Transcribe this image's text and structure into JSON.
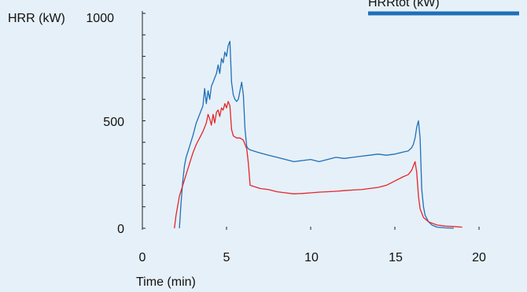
{
  "chart_data": {
    "type": "line",
    "title": "",
    "xlabel": "Time (min)",
    "ylabel": "HRR (kW)",
    "xlim": [
      0,
      20
    ],
    "ylim": [
      0,
      1000
    ],
    "x_ticks": [
      "0",
      "5",
      "10",
      "15",
      "20"
    ],
    "y_ticks": [
      "0",
      "500",
      "1000"
    ],
    "grid": false,
    "legend": {
      "placement": "top-right"
    },
    "colors": {
      "background": "#e6f0f8",
      "series_blue": "#1f6fb8",
      "series_red": "#e3262b",
      "axis": "#222222"
    },
    "series": [
      {
        "name": "HRRtot (kW)",
        "color": "#1f6fb8",
        "x": [
          2.2,
          2.3,
          2.4,
          2.5,
          2.6,
          2.8,
          3.0,
          3.2,
          3.4,
          3.6,
          3.7,
          3.8,
          3.9,
          4.0,
          4.1,
          4.2,
          4.3,
          4.4,
          4.5,
          4.6,
          4.7,
          4.8,
          4.9,
          5.0,
          5.1,
          5.2,
          5.3,
          5.4,
          5.5,
          5.6,
          5.7,
          5.8,
          5.9,
          6.0,
          6.1,
          6.2,
          6.3,
          6.4,
          6.6,
          6.8,
          7.0,
          7.5,
          8.0,
          8.5,
          9.0,
          9.5,
          10.0,
          10.5,
          11.0,
          11.5,
          12.0,
          12.5,
          13.0,
          13.5,
          14.0,
          14.5,
          15.0,
          15.5,
          15.8,
          16.0,
          16.1,
          16.2,
          16.3,
          16.4,
          16.5,
          16.6,
          16.7,
          16.8,
          17.0,
          17.2,
          17.5,
          18.0,
          18.5
        ],
        "y": [
          0,
          120,
          220,
          290,
          330,
          380,
          430,
          490,
          530,
          570,
          650,
          580,
          640,
          600,
          660,
          680,
          700,
          720,
          760,
          720,
          790,
          770,
          820,
          800,
          850,
          870,
          680,
          620,
          600,
          590,
          600,
          640,
          680,
          620,
          460,
          380,
          370,
          365,
          360,
          355,
          350,
          340,
          330,
          320,
          310,
          315,
          320,
          310,
          320,
          330,
          325,
          330,
          335,
          340,
          345,
          340,
          345,
          355,
          360,
          375,
          390,
          420,
          470,
          500,
          420,
          180,
          100,
          60,
          30,
          15,
          5,
          2,
          0
        ]
      },
      {
        "name": "",
        "color": "#e3262b",
        "x": [
          1.9,
          2.0,
          2.2,
          2.4,
          2.6,
          2.8,
          3.0,
          3.2,
          3.4,
          3.6,
          3.8,
          3.9,
          4.0,
          4.1,
          4.2,
          4.3,
          4.4,
          4.5,
          4.6,
          4.7,
          4.8,
          4.9,
          5.0,
          5.1,
          5.2,
          5.3,
          5.4,
          5.6,
          5.8,
          6.0,
          6.1,
          6.2,
          6.3,
          6.4,
          6.6,
          6.8,
          7.0,
          7.5,
          8.0,
          8.5,
          9.0,
          9.5,
          10.0,
          10.5,
          11.0,
          11.5,
          12.0,
          12.5,
          13.0,
          13.5,
          14.0,
          14.5,
          15.0,
          15.5,
          15.8,
          16.0,
          16.1,
          16.2,
          16.3,
          16.4,
          16.5,
          16.7,
          17.0,
          17.5,
          18.0,
          18.5,
          19.0
        ],
        "y": [
          0,
          60,
          150,
          200,
          250,
          300,
          350,
          390,
          420,
          450,
          490,
          530,
          510,
          480,
          530,
          490,
          540,
          550,
          520,
          560,
          550,
          580,
          560,
          590,
          570,
          460,
          430,
          420,
          420,
          410,
          390,
          370,
          300,
          200,
          195,
          190,
          185,
          180,
          170,
          165,
          160,
          162,
          165,
          168,
          170,
          172,
          175,
          178,
          180,
          185,
          190,
          200,
          220,
          240,
          250,
          270,
          290,
          310,
          260,
          150,
          90,
          50,
          30,
          15,
          10,
          8,
          5
        ]
      }
    ]
  }
}
